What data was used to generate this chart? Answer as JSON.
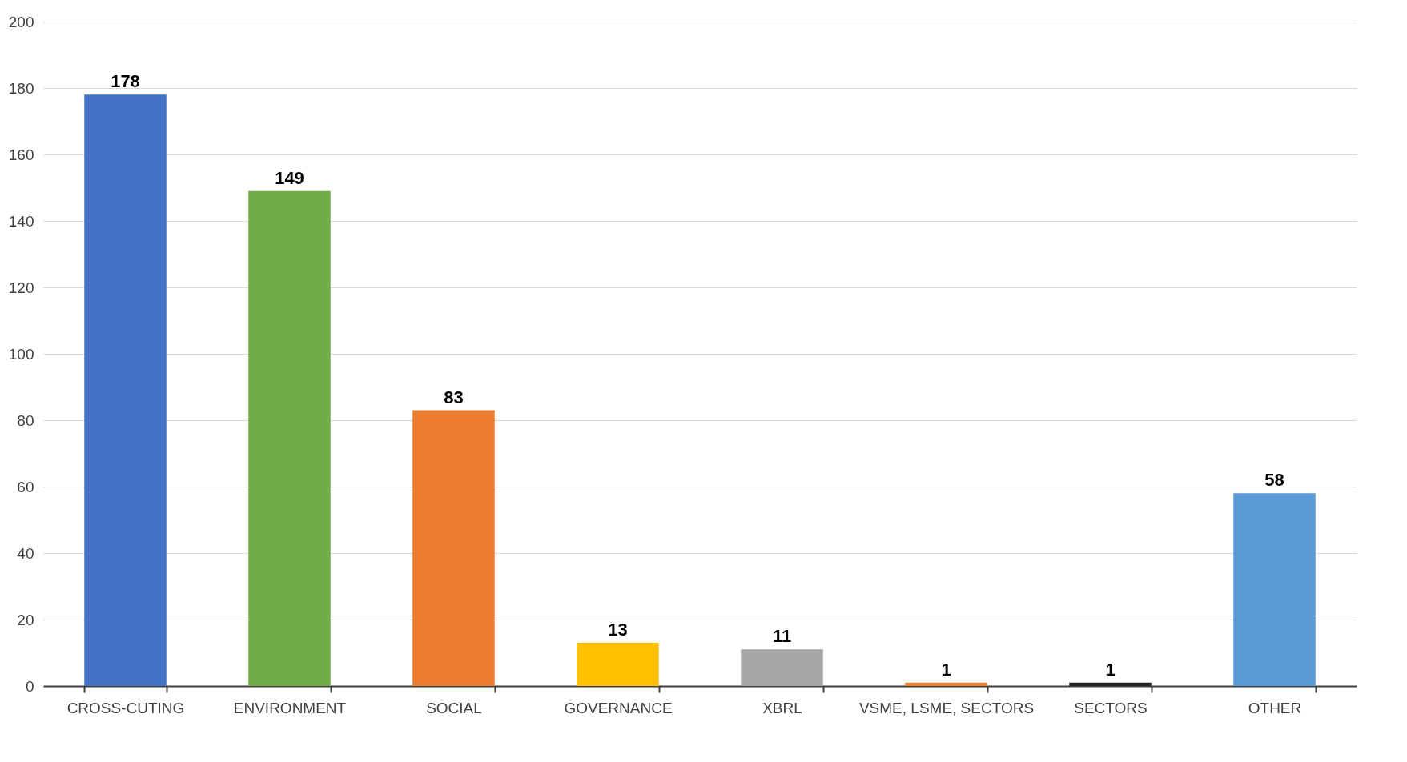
{
  "chart_data": {
    "type": "bar",
    "categories": [
      "CROSS-CUTING",
      "ENVIRONMENT",
      "SOCIAL",
      "GOVERNANCE",
      "XBRL",
      "VSME, LSME, SECTORS",
      "SECTORS",
      "OTHER"
    ],
    "values": [
      178,
      149,
      83,
      13,
      11,
      1,
      1,
      58
    ],
    "colors": [
      "#4472c4",
      "#70ad47",
      "#ed7d31",
      "#ffc000",
      "#a5a5a5",
      "#ed7d31",
      "#262626",
      "#5b9bd5"
    ],
    "ylim": [
      0,
      200
    ],
    "yticks": [
      0,
      20,
      40,
      60,
      80,
      100,
      120,
      140,
      160,
      180,
      200
    ],
    "grid": "y",
    "data_labels": true
  }
}
